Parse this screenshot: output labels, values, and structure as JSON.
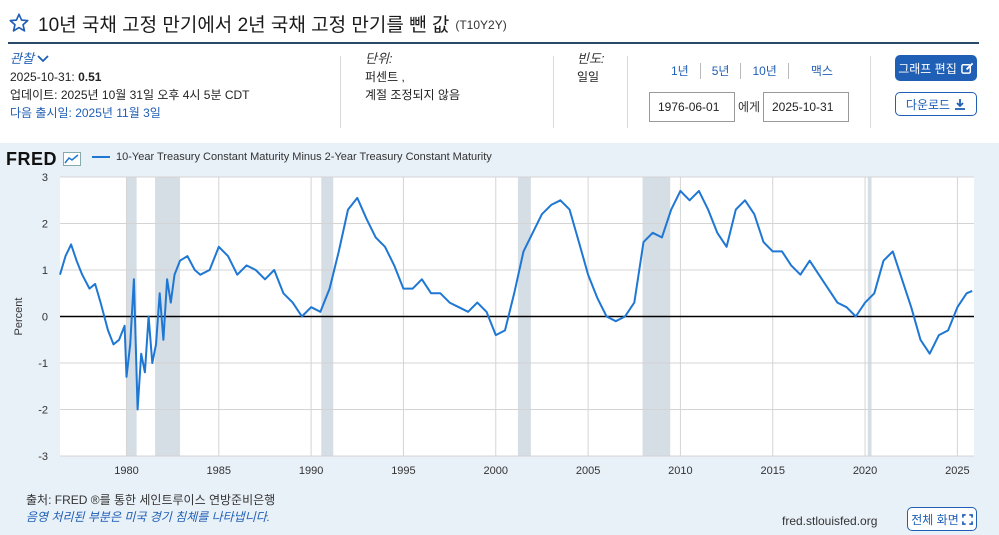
{
  "header": {
    "title": "10년 국채 고정 만기에서 2년 국채 고정 만기를 뺀 값",
    "series_id": "(T10Y2Y)"
  },
  "observation": {
    "label": "관찰",
    "date": "2025-10-31:",
    "value": "0.51",
    "updated": "업데이트: 2025년 10월 31일 오후 4시 5분 CDT",
    "next_release": "다음 출시일: 2025년 11월 3일"
  },
  "units": {
    "label": "단위:",
    "line1": "퍼센트 ,",
    "line2": "계절 조정되지 않음"
  },
  "frequency": {
    "label": "빈도:",
    "value": "일일"
  },
  "range_buttons": [
    "1년",
    "5년",
    "10년",
    "맥스"
  ],
  "date_range": {
    "start": "1976-06-01",
    "to_label": "에게",
    "end": "2025-10-31"
  },
  "buttons": {
    "edit_graph": "그래프 편집",
    "download": "다운로드",
    "fullscreen": "전체 화면"
  },
  "colors": {
    "accent": "#1f5fb5",
    "series": "#1f77d4",
    "recession": "#d5dde5",
    "panel": "#e8f0f8"
  },
  "chart_data": {
    "type": "line",
    "logo": "FRED",
    "legend": "10-Year Treasury Constant Maturity Minus 2-Year Treasury Constant Maturity",
    "ylabel": "Percent",
    "ylim": [
      -3,
      3
    ],
    "yticks": [
      3,
      2,
      1,
      0,
      -1,
      -2,
      -3
    ],
    "xlim": [
      1976.4,
      2025.9
    ],
    "xticks": [
      1980,
      1985,
      1990,
      1995,
      2000,
      2005,
      2010,
      2015,
      2020,
      2025
    ],
    "grid": true,
    "recessions": [
      [
        1980.0,
        1980.55
      ],
      [
        1981.55,
        1982.9
      ],
      [
        1990.55,
        1991.2
      ],
      [
        2001.2,
        2001.9
      ],
      [
        2007.95,
        2009.45
      ],
      [
        2020.15,
        2020.35
      ]
    ],
    "series": [
      {
        "name": "10-Year Treasury Constant Maturity Minus 2-Year Treasury Constant Maturity",
        "x": [
          1976.4,
          1976.7,
          1977.0,
          1977.3,
          1977.6,
          1978.0,
          1978.3,
          1978.6,
          1979.0,
          1979.3,
          1979.6,
          1979.9,
          1980.0,
          1980.2,
          1980.4,
          1980.6,
          1980.8,
          1981.0,
          1981.2,
          1981.4,
          1981.6,
          1981.8,
          1982.0,
          1982.2,
          1982.4,
          1982.6,
          1982.9,
          1983.3,
          1983.7,
          1984.0,
          1984.5,
          1985.0,
          1985.5,
          1986.0,
          1986.5,
          1987.0,
          1987.5,
          1988.0,
          1988.5,
          1989.0,
          1989.5,
          1990.0,
          1990.5,
          1991.0,
          1991.5,
          1992.0,
          1992.5,
          1993.0,
          1993.5,
          1994.0,
          1994.5,
          1995.0,
          1995.5,
          1996.0,
          1996.5,
          1997.0,
          1997.5,
          1998.0,
          1998.5,
          1999.0,
          1999.5,
          2000.0,
          2000.5,
          2001.0,
          2001.5,
          2002.0,
          2002.5,
          2003.0,
          2003.5,
          2004.0,
          2004.5,
          2005.0,
          2005.5,
          2006.0,
          2006.5,
          2007.0,
          2007.5,
          2008.0,
          2008.5,
          2009.0,
          2009.5,
          2010.0,
          2010.5,
          2011.0,
          2011.5,
          2012.0,
          2012.5,
          2013.0,
          2013.5,
          2014.0,
          2014.5,
          2015.0,
          2015.5,
          2016.0,
          2016.5,
          2017.0,
          2017.5,
          2018.0,
          2018.5,
          2019.0,
          2019.5,
          2020.0,
          2020.5,
          2021.0,
          2021.5,
          2022.0,
          2022.5,
          2023.0,
          2023.5,
          2024.0,
          2024.5,
          2025.0,
          2025.5,
          2025.8
        ],
        "values": [
          0.9,
          1.3,
          1.55,
          1.2,
          0.9,
          0.6,
          0.7,
          0.3,
          -0.3,
          -0.6,
          -0.5,
          -0.2,
          -1.3,
          -0.6,
          0.8,
          -2.0,
          -0.8,
          -1.2,
          0.0,
          -1.0,
          -0.6,
          0.5,
          -0.5,
          0.8,
          0.3,
          0.9,
          1.2,
          1.3,
          1.0,
          0.9,
          1.0,
          1.5,
          1.3,
          0.9,
          1.1,
          1.0,
          0.8,
          1.0,
          0.5,
          0.3,
          0.0,
          0.2,
          0.1,
          0.6,
          1.4,
          2.3,
          2.55,
          2.1,
          1.7,
          1.5,
          1.1,
          0.6,
          0.6,
          0.8,
          0.5,
          0.5,
          0.3,
          0.2,
          0.1,
          0.3,
          0.1,
          -0.4,
          -0.3,
          0.5,
          1.4,
          1.8,
          2.2,
          2.4,
          2.5,
          2.3,
          1.6,
          0.9,
          0.4,
          0.0,
          -0.1,
          0.0,
          0.3,
          1.6,
          1.8,
          1.7,
          2.3,
          2.7,
          2.5,
          2.7,
          2.3,
          1.8,
          1.5,
          2.3,
          2.5,
          2.2,
          1.6,
          1.4,
          1.4,
          1.1,
          0.9,
          1.2,
          0.9,
          0.6,
          0.3,
          0.2,
          0.0,
          0.3,
          0.5,
          1.2,
          1.4,
          0.8,
          0.2,
          -0.5,
          -0.8,
          -0.4,
          -0.3,
          0.2,
          0.5,
          0.55
        ]
      }
    ],
    "last_value_date": "2025-10-31",
    "last_value": 0.51
  },
  "footer": {
    "source": "출처: FRED ®를 통한 세인트루이스 연방준비은행",
    "shade_note": "음영 처리된 부분은 미국 경기 침체를 나타냅니다.",
    "url": "fred.stlouisfed.org"
  }
}
